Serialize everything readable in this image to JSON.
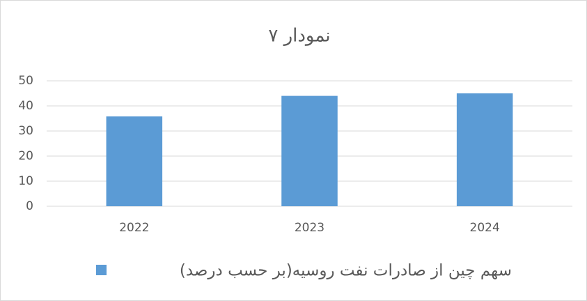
{
  "chart_data": {
    "type": "bar",
    "title": "نمودار ۷",
    "categories": [
      "2022",
      "2023",
      "2024"
    ],
    "series": [
      {
        "name": "سهم چین از صادرات نفت روسیه(بر حسب درصد)",
        "color": "#5b9bd5",
        "values": [
          35.8,
          44,
          45
        ]
      }
    ],
    "ylim": [
      0,
      50
    ],
    "yticks": [
      0,
      10,
      20,
      30,
      40,
      50
    ],
    "grid": true,
    "legend": "bottom"
  }
}
